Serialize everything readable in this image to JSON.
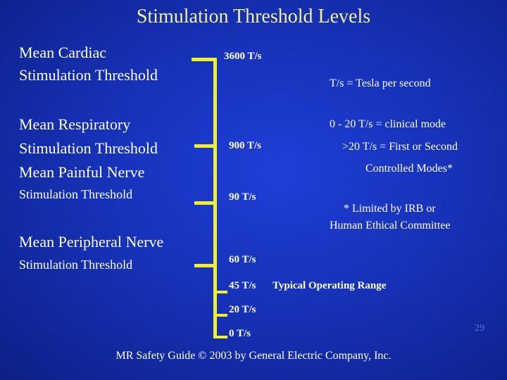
{
  "title": "Stimulation Threshold Levels",
  "labels": {
    "cardiac": [
      "Mean Cardiac",
      "Stimulation Threshold"
    ],
    "respiratory": [
      "Mean Respiratory",
      "Stimulation Threshold"
    ],
    "painful_nerve": [
      "Mean Painful Nerve",
      "Stimulation Threshold"
    ],
    "peripheral_nerve": [
      "Mean Peripheral Nerve",
      "Stimulation Threshold"
    ]
  },
  "values": {
    "v3600": "3600 T/s",
    "v900": "900 T/s",
    "v90": "90 T/s",
    "v60": "60 T/s",
    "v45": "45 T/s",
    "v20": "20 T/s",
    "v0": "0 T/s"
  },
  "typical_range": "Typical Operating Range",
  "notes": {
    "unit": "T/s = Tesla per second",
    "clinical": "0 - 20 T/s = clinical mode",
    "controlled_1": ">20 T/s = First or Second",
    "controlled_2": "Controlled Modes*",
    "irb_1": "* Limited by IRB or",
    "irb_2": "Human Ethical Committee"
  },
  "page_number": "29",
  "footer": "MR Safety Guide © 2003 by General Electric Company, Inc.",
  "colors": {
    "title": "#f3ef96",
    "bars": "#f1ee2a",
    "background": "#1632b8"
  }
}
